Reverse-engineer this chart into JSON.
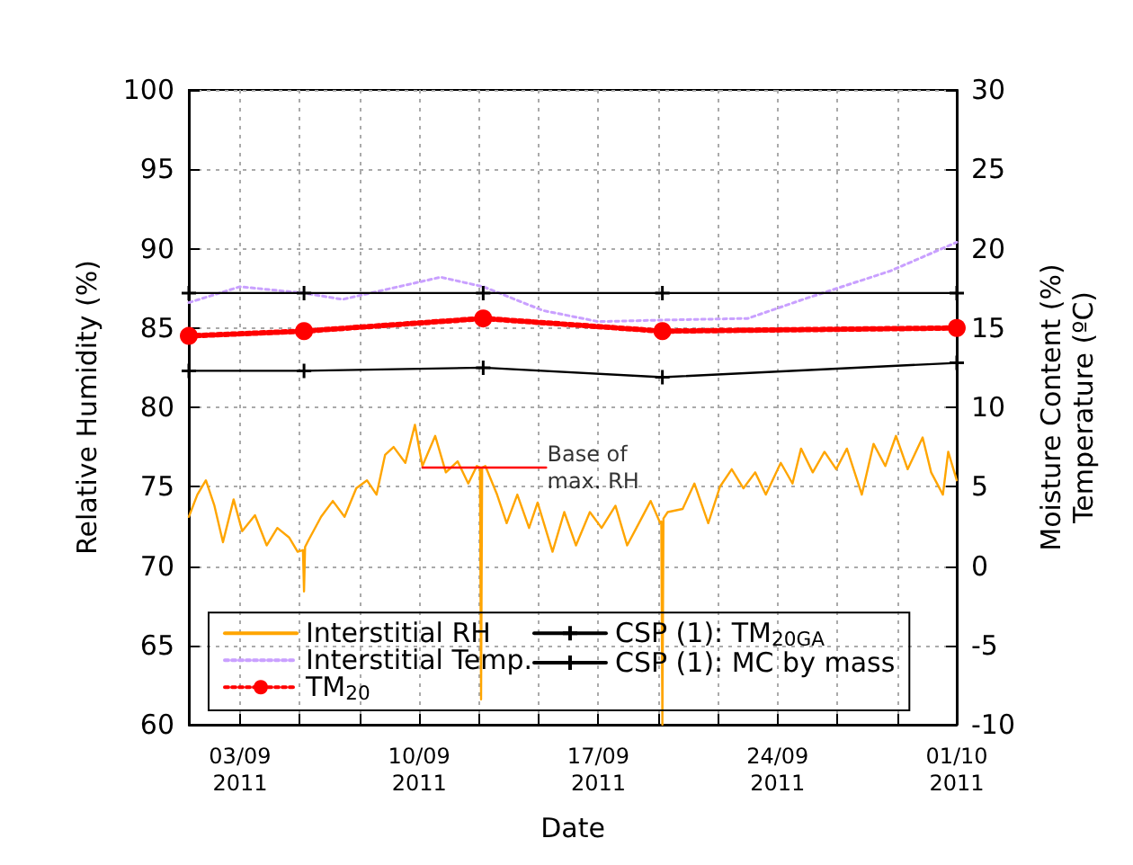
{
  "chart_data": {
    "type": "line",
    "xlabel": "Date",
    "ylabel": "Relative Humidity (%)",
    "y2label": "Moisture Content (%)\nTemperature (ºC)",
    "xlim": [
      "2011-09-01",
      "2011-10-01"
    ],
    "xticks": [
      {
        "value": "2011-09-03",
        "label": "03/09\n2011"
      },
      {
        "value": "2011-09-05T08:00",
        "label": null
      },
      {
        "value": "2011-09-07T16:00",
        "label": null
      },
      {
        "value": "2011-09-10",
        "label": "10/09\n2011"
      },
      {
        "value": "2011-09-12T08:00",
        "label": null
      },
      {
        "value": "2011-09-14T16:00",
        "label": null
      },
      {
        "value": "2011-09-17",
        "label": "17/09\n2011"
      },
      {
        "value": "2011-09-19T08:00",
        "label": null
      },
      {
        "value": "2011-09-21T16:00",
        "label": null
      },
      {
        "value": "2011-09-24",
        "label": "24/09\n2011"
      },
      {
        "value": "2011-09-26T08:00",
        "label": null
      },
      {
        "value": "2011-09-28T16:00",
        "label": null
      },
      {
        "value": "2011-10-01",
        "label": "01/10\n2011"
      }
    ],
    "ylim": [
      60,
      100
    ],
    "yticks": [
      60,
      65,
      70,
      75,
      80,
      85,
      90,
      95,
      100
    ],
    "y2lim": [
      -10,
      30
    ],
    "y2ticks": [
      -10,
      -5,
      0,
      5,
      10,
      15,
      20,
      25,
      30
    ],
    "grid": true,
    "legend": "bottom left",
    "series": [
      {
        "name": "Interstitial RH",
        "color": "#ffa500",
        "marker": "none",
        "line_style": "solid",
        "x": [
          "2011-09-01T00:00",
          "2011-09-01T08:00",
          "2011-09-01T16:00",
          "2011-09-02T00:00",
          "2011-09-02T08:00",
          "2011-09-02T18:00",
          "2011-09-03T02:00",
          "2011-09-03T14:00",
          "2011-09-04T01:00",
          "2011-09-04T11:00",
          "2011-09-04T22:00",
          "2011-09-05T06:00",
          "2011-09-05T11:00",
          "2011-09-05T12:00",
          "2011-09-05T13:00",
          "2011-09-05T16:00",
          "2011-09-06T04:00",
          "2011-09-06T15:00",
          "2011-09-07T02:00",
          "2011-09-07T13:00",
          "2011-09-07T23:00",
          "2011-09-08T08:00",
          "2011-09-08T16:00",
          "2011-09-09T00:00",
          "2011-09-09T11:00",
          "2011-09-09T20:00",
          "2011-09-10T03:00",
          "2011-09-10T15:00",
          "2011-09-11T01:00",
          "2011-09-11T12:00",
          "2011-09-11T22:00",
          "2011-09-12T06:00",
          "2011-09-12T09:00",
          "2011-09-12T10:00",
          "2011-09-12T11:00",
          "2011-09-12T14:00",
          "2011-09-13T01:00",
          "2011-09-13T10:00",
          "2011-09-13T20:00",
          "2011-09-14T07:00",
          "2011-09-14T15:00",
          "2011-09-15T05:00",
          "2011-09-15T16:00",
          "2011-09-16T03:00",
          "2011-09-16T16:00",
          "2011-09-17T03:00",
          "2011-09-17T16:00",
          "2011-09-18T03:00",
          "2011-09-18T14:00",
          "2011-09-19T01:00",
          "2011-09-19T10:00",
          "2011-09-19T11:00",
          "2011-09-19T12:00",
          "2011-09-19T13:00",
          "2011-09-19T17:00",
          "2011-09-20T07:00",
          "2011-09-20T18:00",
          "2011-09-21T07:00",
          "2011-09-21T18:00",
          "2011-09-22T05:00",
          "2011-09-22T16:00",
          "2011-09-23T03:00",
          "2011-09-23T13:00",
          "2011-09-24T03:00",
          "2011-09-24T14:00",
          "2011-09-24T22:00",
          "2011-09-25T09:00",
          "2011-09-25T20:00",
          "2011-09-26T07:00",
          "2011-09-26T17:00",
          "2011-09-27T07:00",
          "2011-09-27T18:00",
          "2011-09-28T05:00",
          "2011-09-28T15:00",
          "2011-09-29T02:00",
          "2011-09-29T16:00",
          "2011-09-30T00:00",
          "2011-09-30T11:00",
          "2011-09-30T16:00",
          "2011-10-01T00:00"
        ],
        "values": [
          73.1,
          74.5,
          75.4,
          73.8,
          71.5,
          74.2,
          72.2,
          73.2,
          71.3,
          72.4,
          71.8,
          70.9,
          71.0,
          68.4,
          71.2,
          71.6,
          73.1,
          74.1,
          73.1,
          74.9,
          75.4,
          74.5,
          77.0,
          77.5,
          76.5,
          78.9,
          76.3,
          78.2,
          75.9,
          76.6,
          75.2,
          76.3,
          76.2,
          61.6,
          76.2,
          76.3,
          74.5,
          72.7,
          74.5,
          72.4,
          74.0,
          70.9,
          73.4,
          71.3,
          73.4,
          72.4,
          73.8,
          71.3,
          72.7,
          74.1,
          72.7,
          72.8,
          60,
          73.0,
          73.4,
          73.6,
          75.2,
          72.7,
          75.0,
          76.1,
          74.9,
          75.9,
          74.5,
          76.5,
          75.2,
          77.4,
          75.9,
          77.2,
          76.1,
          77.4,
          74.5,
          77.7,
          76.3,
          78.2,
          76.1,
          78.1,
          75.9,
          74.5,
          77.2,
          75.4
        ]
      },
      {
        "name": "Interstitial Temp.",
        "color": "#c9a0ff",
        "marker": "none",
        "line_style": "dotted",
        "axis": "y2",
        "x": [
          "2011-09-01T00:00",
          "2011-09-03T00:00",
          "2011-09-05T12:00",
          "2011-09-07T00:00",
          "2011-09-10T20:00",
          "2011-09-12T12:00",
          "2011-09-14T20:00",
          "2011-09-17T00:00",
          "2011-09-19T12:00",
          "2011-09-22T20:00",
          "2011-09-25T00:00",
          "2011-09-28T10:00",
          "2011-10-01T00:00"
        ],
        "values": [
          16.6,
          17.6,
          17.2,
          16.8,
          18.2,
          17.6,
          16.1,
          15.4,
          15.5,
          15.6,
          16.8,
          18.6,
          20.4
        ]
      },
      {
        "name": "TM$_{20}$",
        "color": "#ff0000",
        "marker": "circle",
        "line_style": "dotted",
        "axis": "y2",
        "x": [
          "2011-09-01T00:00",
          "2011-09-05T12:00",
          "2011-09-12T12:00",
          "2011-09-19T12:00",
          "2011-10-01T00:00"
        ],
        "values": [
          14.5,
          14.8,
          15.6,
          14.8,
          15.0
        ]
      },
      {
        "name": "CSP (1): TM$_{20GA}$",
        "color": "#000000",
        "marker": "cross",
        "line_style": "solid",
        "axis": "y2",
        "x": [
          "2011-09-01T00:00",
          "2011-09-05T12:00",
          "2011-09-12T12:00",
          "2011-09-19T12:00",
          "2011-10-01T00:00"
        ],
        "values": [
          12.3,
          12.3,
          12.5,
          11.9,
          12.8
        ]
      },
      {
        "name": "CSP (1): MC by mass",
        "color": "#000000",
        "marker": "cross",
        "line_style": "solid",
        "axis": "y2",
        "x": [
          "2011-09-01T00:00",
          "2011-09-05T12:00",
          "2011-09-12T12:00",
          "2011-09-19T12:00",
          "2011-10-01T00:00"
        ],
        "values": [
          17.2,
          17.2,
          17.2,
          17.2,
          17.2
        ]
      },
      {
        "color": "#ff0000",
        "marker": "none",
        "line_style": "solid",
        "x": [
          "2011-09-10T03:00",
          "2011-09-14T23:00"
        ],
        "values": [
          76.2,
          76.2
        ]
      }
    ],
    "annotations": [
      {
        "text": "Base of\nmax. RH",
        "x": "2011-09-15T00:00",
        "y": 76.2
      }
    ]
  }
}
